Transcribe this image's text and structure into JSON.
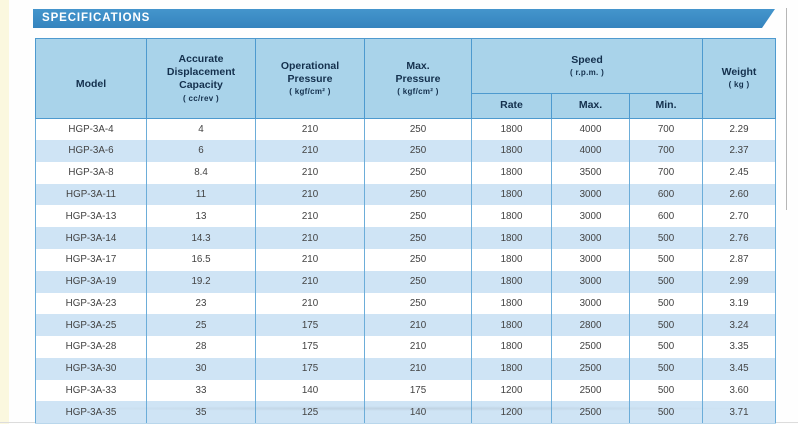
{
  "page": {
    "section_title": "SPECIFICATIONS"
  },
  "colors": {
    "banner_blue": "#3987c3",
    "header_bg": "#a9d3ea",
    "stripe_bg": "#cfe4f5",
    "border_blue": "#4e9acf",
    "page_edge_yellow": "#fbf8df"
  },
  "table": {
    "headers": {
      "model": "Model",
      "capacity": "Accurate\nDisplacement\nCapacity",
      "capacity_unit": "( cc/rev )",
      "op_pressure": "Operational\nPressure",
      "op_pressure_unit": "( kgf/cm² )",
      "max_pressure": "Max.\nPressure",
      "max_pressure_unit": "( kgf/cm² )",
      "speed": "Speed",
      "speed_unit": "( r.p.m. )",
      "speed_rate": "Rate",
      "speed_max": "Max.",
      "speed_min": "Min.",
      "weight": "Weight",
      "weight_unit": "( kg )"
    },
    "rows": [
      {
        "model": "HGP-3A-4",
        "capacity": "4",
        "op_pressure": "210",
        "max_pressure": "250",
        "rate": "1800",
        "max": "4000",
        "min": "700",
        "weight": "2.29"
      },
      {
        "model": "HGP-3A-6",
        "capacity": "6",
        "op_pressure": "210",
        "max_pressure": "250",
        "rate": "1800",
        "max": "4000",
        "min": "700",
        "weight": "2.37"
      },
      {
        "model": "HGP-3A-8",
        "capacity": "8.4",
        "op_pressure": "210",
        "max_pressure": "250",
        "rate": "1800",
        "max": "3500",
        "min": "700",
        "weight": "2.45"
      },
      {
        "model": "HGP-3A-11",
        "capacity": "11",
        "op_pressure": "210",
        "max_pressure": "250",
        "rate": "1800",
        "max": "3000",
        "min": "600",
        "weight": "2.60"
      },
      {
        "model": "HGP-3A-13",
        "capacity": "13",
        "op_pressure": "210",
        "max_pressure": "250",
        "rate": "1800",
        "max": "3000",
        "min": "600",
        "weight": "2.70"
      },
      {
        "model": "HGP-3A-14",
        "capacity": "14.3",
        "op_pressure": "210",
        "max_pressure": "250",
        "rate": "1800",
        "max": "3000",
        "min": "500",
        "weight": "2.76"
      },
      {
        "model": "HGP-3A-17",
        "capacity": "16.5",
        "op_pressure": "210",
        "max_pressure": "250",
        "rate": "1800",
        "max": "3000",
        "min": "500",
        "weight": "2.87"
      },
      {
        "model": "HGP-3A-19",
        "capacity": "19.2",
        "op_pressure": "210",
        "max_pressure": "250",
        "rate": "1800",
        "max": "3000",
        "min": "500",
        "weight": "2.99"
      },
      {
        "model": "HGP-3A-23",
        "capacity": "23",
        "op_pressure": "210",
        "max_pressure": "250",
        "rate": "1800",
        "max": "3000",
        "min": "500",
        "weight": "3.19"
      },
      {
        "model": "HGP-3A-25",
        "capacity": "25",
        "op_pressure": "175",
        "max_pressure": "210",
        "rate": "1800",
        "max": "2800",
        "min": "500",
        "weight": "3.24"
      },
      {
        "model": "HGP-3A-28",
        "capacity": "28",
        "op_pressure": "175",
        "max_pressure": "210",
        "rate": "1800",
        "max": "2500",
        "min": "500",
        "weight": "3.35"
      },
      {
        "model": "HGP-3A-30",
        "capacity": "30",
        "op_pressure": "175",
        "max_pressure": "210",
        "rate": "1800",
        "max": "2500",
        "min": "500",
        "weight": "3.45"
      },
      {
        "model": "HGP-3A-33",
        "capacity": "33",
        "op_pressure": "140",
        "max_pressure": "175",
        "rate": "1200",
        "max": "2500",
        "min": "500",
        "weight": "3.60"
      },
      {
        "model": "HGP-3A-35",
        "capacity": "35",
        "op_pressure": "125",
        "max_pressure": "140",
        "rate": "1200",
        "max": "2500",
        "min": "500",
        "weight": "3.71"
      }
    ]
  }
}
